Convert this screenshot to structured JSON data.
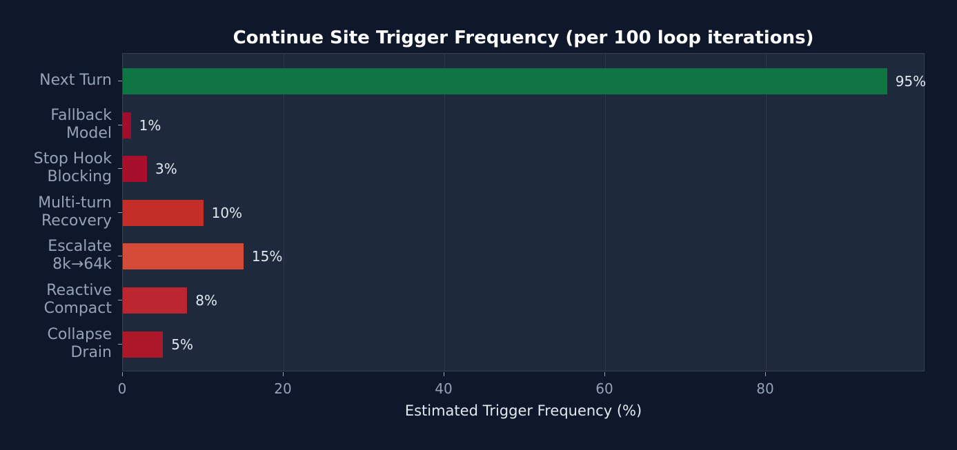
{
  "chart_data": {
    "type": "bar",
    "orientation": "horizontal",
    "title": "Continue Site Trigger Frequency (per 100 loop iterations)",
    "xlabel": "Estimated Trigger Frequency (%)",
    "ylabel": "",
    "xlim": [
      0,
      100
    ],
    "xticks": [
      "0",
      "20",
      "40",
      "60",
      "80"
    ],
    "grid": "x",
    "categories": [
      "Next Turn",
      "Fallback\nModel",
      "Stop Hook\nBlocking",
      "Multi-turn\nRecovery",
      "Escalate\n8k→64k",
      "Reactive\nCompact",
      "Collapse\nDrain"
    ],
    "values": [
      95,
      1,
      3,
      10,
      15,
      8,
      5
    ],
    "value_labels": [
      "95%",
      "1%",
      "3%",
      "10%",
      "15%",
      "8%",
      "5%"
    ],
    "colors": [
      "#0f7643",
      "#a10d2a",
      "#a6102c",
      "#c42e28",
      "#d44c38",
      "#bc2630",
      "#ac172a"
    ]
  }
}
